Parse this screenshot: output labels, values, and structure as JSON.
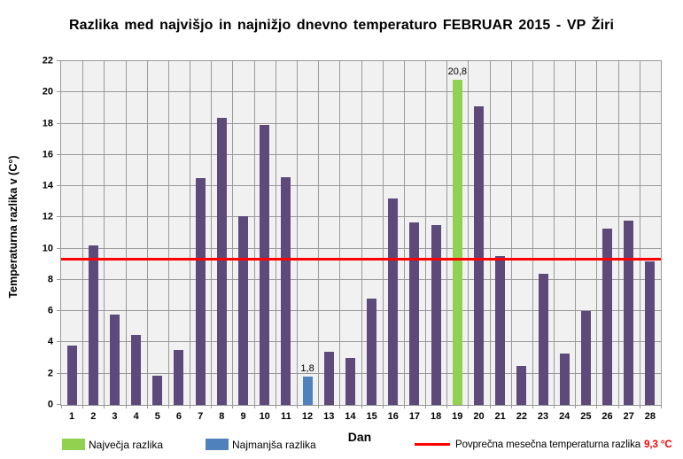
{
  "chart_data": {
    "type": "bar",
    "title": "Razlika med najvišjo in najnižjo dnevno temperaturo FEBRUAR 2015 - VP Žiri",
    "xlabel": "Dan",
    "ylabel": "Temperaturna razlika v (C°)",
    "ylim": [
      0,
      22
    ],
    "y_ticks": [
      0,
      2,
      4,
      6,
      8,
      10,
      12,
      14,
      16,
      18,
      20,
      22
    ],
    "grid": true,
    "legend_position": "bottom",
    "categories": [
      1,
      2,
      3,
      4,
      5,
      6,
      7,
      8,
      9,
      10,
      11,
      12,
      13,
      14,
      15,
      16,
      17,
      18,
      19,
      20,
      21,
      22,
      23,
      24,
      25,
      26,
      27,
      28
    ],
    "values": [
      3.8,
      10.2,
      5.8,
      4.5,
      1.9,
      3.5,
      14.5,
      18.4,
      12.1,
      17.9,
      14.6,
      1.8,
      3.4,
      3.0,
      6.8,
      13.2,
      11.7,
      11.5,
      20.8,
      19.1,
      9.5,
      2.5,
      8.4,
      3.3,
      6.0,
      11.3,
      11.8,
      9.2
    ],
    "bar_color": "#5D4A7B",
    "highlight_bars": {
      "12": {
        "color": "#4F81BD",
        "label": "1,8"
      },
      "19": {
        "color": "#92D050",
        "label": "20,8"
      }
    },
    "average_line": {
      "value": 9.3,
      "color": "#FF0000"
    }
  },
  "legend": {
    "max": {
      "label": "Največja razlika",
      "color": "#92D050"
    },
    "min": {
      "label": "Najmanjša razlika",
      "color": "#4F81BD"
    },
    "avg": {
      "label": "Povprečna mesečna temperaturna razlika",
      "value": "9,3 °C",
      "color": "#FF0000"
    }
  }
}
